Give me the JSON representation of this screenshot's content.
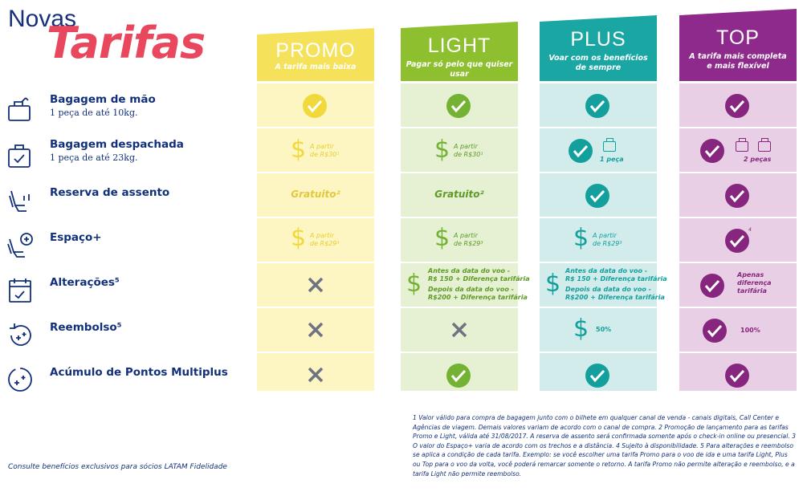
{
  "title": {
    "line1": "Novas",
    "line2": "Tarifas"
  },
  "features": [
    {
      "name": "Bagagem de mão",
      "sub": "1 peça de até 10kg.",
      "icon": "hand-luggage-icon"
    },
    {
      "name": "Bagagem despachada",
      "sub": "1 peça de até 23kg.",
      "icon": "checked-bag-icon"
    },
    {
      "name": "Reserva de assento",
      "sub": "",
      "icon": "seat-icon"
    },
    {
      "name": "Espaço+",
      "sub": "",
      "icon": "seat-plus-icon"
    },
    {
      "name": "Alterações⁵",
      "sub": "",
      "icon": "calendar-icon"
    },
    {
      "name": "Reembolso⁵",
      "sub": "",
      "icon": "refund-icon"
    },
    {
      "name": "Acúmulo de Pontos Multiplus",
      "sub": "",
      "icon": "points-icon"
    }
  ],
  "plans": [
    {
      "name": "PROMO",
      "tagline": "A tarifa mais baixa",
      "color": "#f5e25a",
      "bg": "#fdf6c2",
      "fg": "#f1d93c",
      "bag_price": "A partir\nde R$30¹",
      "seat": "Gratuito²",
      "space_price": "A partir\nde R$29³"
    },
    {
      "name": "LIGHT",
      "tagline": "Pagar só pelo que quiser usar",
      "color": "#8dbf2f",
      "bg": "#e5f1d2",
      "fg": "#74b233",
      "bag_price": "A partir\nde R$30¹",
      "seat": "Gratuito²",
      "space_price": "A partir\nde R$29³",
      "alter_before": "Antes da data do voo -\nR$ 150 + Diferença tarifária",
      "alter_after": "Depois da data do voo -\nR$200 + Diferença tarifária"
    },
    {
      "name": "PLUS",
      "tagline": "Voar com os benefícios\nde sempre",
      "color": "#1aa7a4",
      "bg": "#d2ecec",
      "fg": "#13a09c",
      "bag_pieces": "1 peça",
      "space_price": "A partir\nde R$29³",
      "alter_before": "Antes da data do voo -\nR$ 150 + Diferença tarifária",
      "alter_after": "Depois da data do voo -\nR$200 + Diferença tarifária",
      "refund": "50%"
    },
    {
      "name": "TOP",
      "tagline": "A tarifa mais completa\ne mais flexível",
      "color": "#8d2a8b",
      "bg": "#e8cfe5",
      "fg": "#87267f",
      "bag_pieces": "2 peças",
      "space_note": "4",
      "alter": "Apenas\ndiferença\ntarifária",
      "refund": "100%"
    }
  ],
  "footer_left": "Consulte benefícios exclusivos para sócios LATAM Fidelidade",
  "footer_right": "1 Valor válido para compra de bagagem junto com o bilhete em qualquer canal de venda - canais digitais, Call Center e Agências de viagem. Demais valores variam de acordo com o canal de compra.  2 Promoção de lançamento para as tarifas Promo e Light, válida até 31/08/2017. A reserva de assento será confirmada somente após o check-in online ou presencial. 3 O valor do Espaço+ varia de acordo com os trechos e a distância. 4 Sujeito à disponibilidade. 5 Para alterações e reembolso se aplica a condição de cada tarifa. Exemplo: se você escolher uma tarifa Promo para o voo de ida e uma tarifa Light, Plus ou Top para o voo da volta, você poderá remarcar somente o retorno. A tarifa Promo não permite alteração e reembolso, e a tarifa Light não permite reembolso."
}
